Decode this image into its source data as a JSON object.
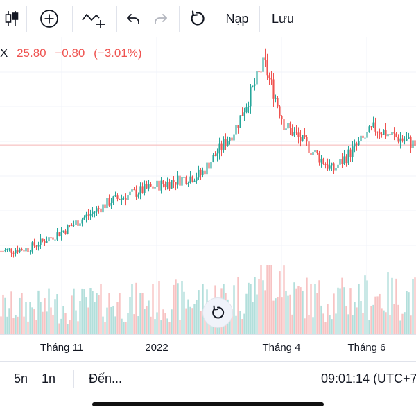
{
  "toolbar": {
    "icons": [
      "candlestick-icon",
      "plus-circle-icon",
      "indicator-add-icon",
      "undo-icon",
      "redo-icon",
      "reload-icon"
    ],
    "load_label": "Nạp",
    "save_label": "Lưu"
  },
  "legend": {
    "symbol": "X",
    "price": "25.80",
    "change": "−0.80",
    "change_pct": "(−3.01%)"
  },
  "colors": {
    "up": "#26a69a",
    "down": "#ef5350",
    "up_volume": "#b2dfdb",
    "down_volume": "#f7c3c3",
    "price_line": "#f5b5b5"
  },
  "chart_data": {
    "type": "candlestick",
    "current_price": 25.8,
    "price_range_visible": [
      10,
      38
    ],
    "x_tick_labels": [
      "Tháng 11",
      "2022",
      "Tháng 4",
      "Tháng 6"
    ],
    "grid": true,
    "price_path_approx": [
      {
        "date": "2021-09",
        "close": 12.0
      },
      {
        "date": "2021-10",
        "close": 12.3
      },
      {
        "date": "2021-11",
        "close": 14.5
      },
      {
        "date": "2021-12",
        "close": 18.5
      },
      {
        "date": "2022-01",
        "close": 20.5
      },
      {
        "date": "2022-02",
        "close": 22.0
      },
      {
        "date": "2022-03",
        "close": 28.0
      },
      {
        "date": "2022-03-28",
        "close": 36.5
      },
      {
        "date": "2022-04",
        "close": 28.5
      },
      {
        "date": "2022-05",
        "close": 22.5
      },
      {
        "date": "2022-06",
        "close": 28.0
      },
      {
        "date": "2022-07",
        "close": 25.8
      }
    ]
  },
  "reset_button": {
    "icon": "reset-chart-icon"
  },
  "bottom_bar": {
    "range_5d": "5n",
    "range_1d": "1n",
    "goto": "Đến...",
    "clock": "09:01:14 (UTC+7)"
  }
}
